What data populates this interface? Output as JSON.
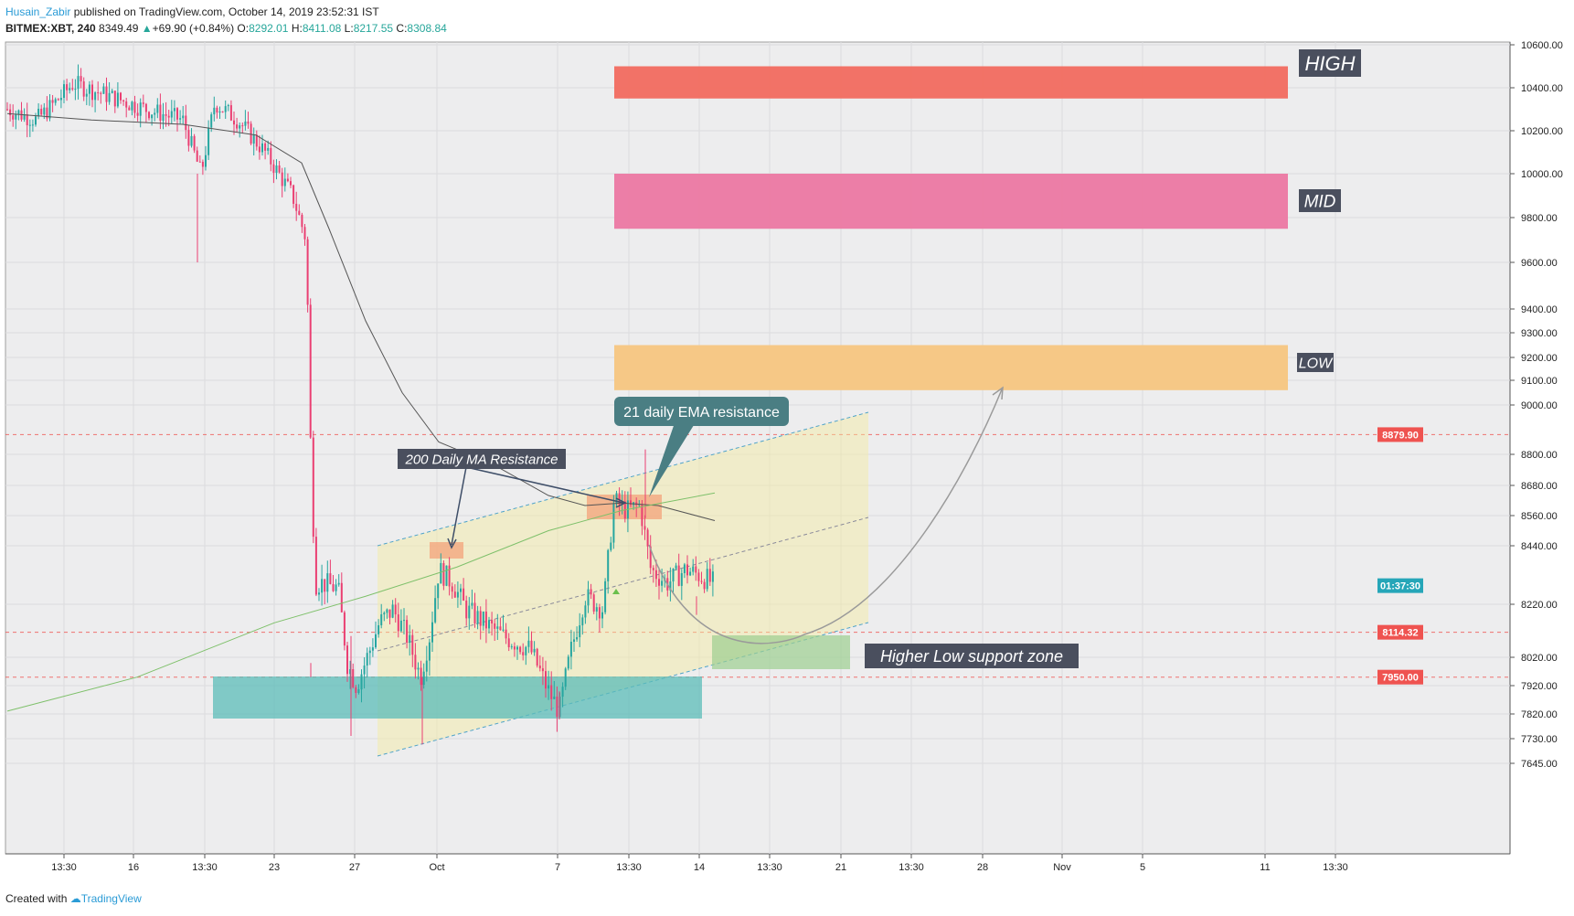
{
  "header": {
    "author": "Husain_Zabir",
    "published": " published on TradingView.com, October 14, 2019 23:52:31 IST",
    "symbol": "BITMEX:XBT, 240",
    "last": "8349.49",
    "change": "+69.90 (+0.84%)",
    "o_label": "O:",
    "o": "8292.01",
    "h_label": "H:",
    "h": "8411.08",
    "l_label": "L:",
    "l": "8217.55",
    "c_label": "C:",
    "c": "8308.84"
  },
  "footer": {
    "created": "Created with",
    "brand": "TradingView"
  },
  "chart_data": {
    "type": "line",
    "title": "",
    "y_ticks": [
      "10600.00",
      "10400.00",
      "10200.00",
      "10000.00",
      "9800.00",
      "9600.00",
      "9400.00",
      "9300.00",
      "9200.00",
      "9100.00",
      "9000.00",
      "8800.00",
      "8680.00",
      "8560.00",
      "8440.00",
      "8220.00",
      "8020.00",
      "7920.00",
      "7820.00",
      "7730.00",
      "7645.00"
    ],
    "x_ticks": [
      "13:30",
      "16",
      "13:30",
      "23",
      "27",
      "Oct",
      "7",
      "13:30",
      "14",
      "13:30",
      "21",
      "13:30",
      "28",
      "Nov",
      "5",
      "11",
      "13:30"
    ],
    "price_labels": [
      {
        "text": "8879.90",
        "color": "#ef5350"
      },
      {
        "text": "01:37:30",
        "color": "#26a6b8"
      },
      {
        "text": "8114.32",
        "color": "#ef5350"
      },
      {
        "text": "7950.00",
        "color": "#ef5350"
      }
    ],
    "zones": [
      {
        "name": "HIGH",
        "y_range": [
          10350,
          10500
        ],
        "color": "#f26b5f"
      },
      {
        "name": "MID",
        "y_range": [
          9750,
          10000
        ],
        "color": "#ec78a2"
      },
      {
        "name": "LOW",
        "y_range": [
          9060,
          9250
        ],
        "color": "#f7c67f"
      }
    ],
    "annotations": [
      "200 Daily MA Resistance",
      "21 daily EMA resistance",
      "Higher Low support zone"
    ],
    "zone_labels": [
      "HIGH",
      "MID",
      "LOW"
    ],
    "colors": {
      "up": "#26a6a0",
      "down": "#ea3f72",
      "ma": "#555555",
      "ema": "#7ec06a"
    }
  }
}
